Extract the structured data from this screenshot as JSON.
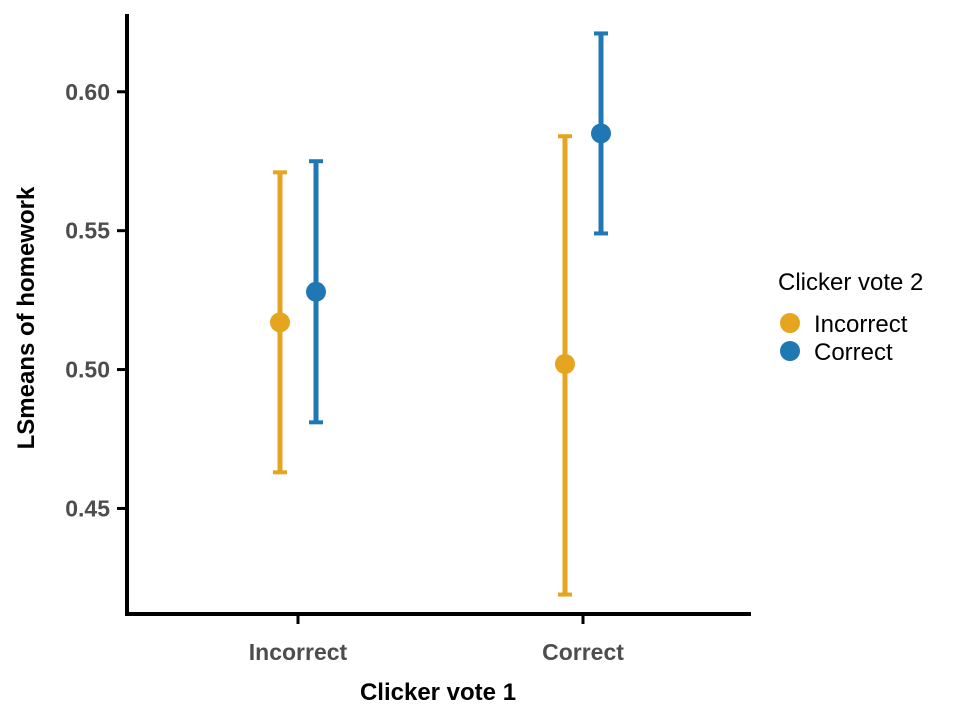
{
  "chart_data": {
    "type": "scatter",
    "subtype": "point-with-error-bars",
    "xlabel": "Clicker vote 1",
    "ylabel": "LSmeans of homework",
    "categories": [
      "Incorrect",
      "Correct"
    ],
    "ylim": [
      0.412,
      0.628
    ],
    "yticks": [
      0.45,
      0.5,
      0.55,
      0.6
    ],
    "ytick_labels": [
      "0.45",
      "0.50",
      "0.55",
      "0.60"
    ],
    "grid": false,
    "legend": {
      "title": "Clicker vote 2",
      "position": "right"
    },
    "series": [
      {
        "name": "Incorrect",
        "color": "#E6A51E",
        "values": [
          0.517,
          0.502
        ],
        "lower": [
          0.463,
          0.419
        ],
        "upper": [
          0.571,
          0.584
        ]
      },
      {
        "name": "Correct",
        "color": "#1F77B4",
        "values": [
          0.528,
          0.585
        ],
        "lower": [
          0.481,
          0.549
        ],
        "upper": [
          0.575,
          0.621
        ]
      }
    ]
  }
}
